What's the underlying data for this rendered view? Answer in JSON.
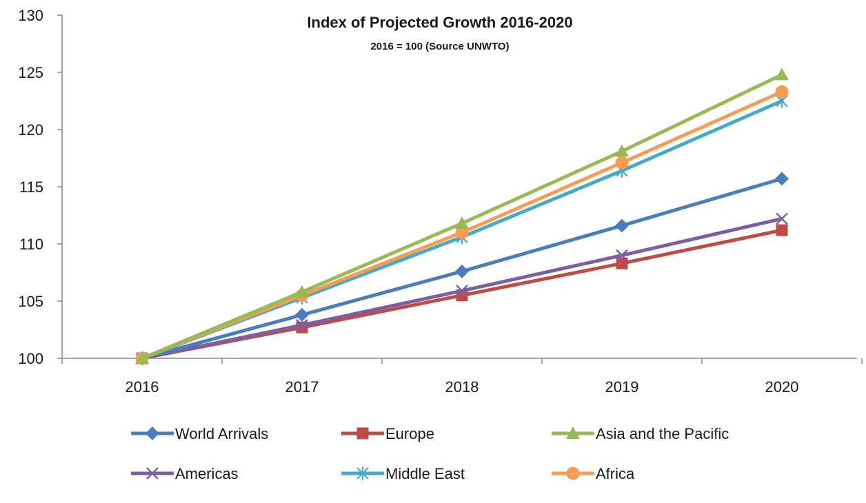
{
  "chart_data": {
    "type": "line",
    "title": "Index of Projected Growth 2016-2020",
    "subtitle": "2016 = 100 (Source UNWTO)",
    "xlabel": "",
    "ylabel": "",
    "categories": [
      "2016",
      "2017",
      "2018",
      "2019",
      "2020"
    ],
    "ylim": [
      100,
      130
    ],
    "yticks": [
      100,
      105,
      110,
      115,
      120,
      125,
      130
    ],
    "grid": false,
    "legend_position": "bottom",
    "series": [
      {
        "name": "World Arrivals",
        "color": "#4a7ebb",
        "marker": "diamond",
        "values": [
          100,
          103.8,
          107.6,
          111.6,
          115.7
        ]
      },
      {
        "name": "Europe",
        "color": "#be4b48",
        "marker": "square",
        "values": [
          100,
          102.7,
          105.5,
          108.3,
          111.2
        ]
      },
      {
        "name": "Asia and the Pacific",
        "color": "#98b954",
        "marker": "triangle",
        "values": [
          100,
          105.8,
          111.8,
          118.1,
          124.8
        ]
      },
      {
        "name": "Americas",
        "color": "#7d5fa0",
        "marker": "x",
        "values": [
          100,
          102.9,
          105.9,
          109.0,
          112.2
        ]
      },
      {
        "name": "Middle East",
        "color": "#46aac5",
        "marker": "star",
        "values": [
          100,
          105.3,
          110.6,
          116.4,
          122.5
        ]
      },
      {
        "name": "Africa",
        "color": "#f59d56",
        "marker": "circle",
        "values": [
          100,
          105.5,
          111.0,
          117.1,
          123.3
        ]
      }
    ]
  }
}
